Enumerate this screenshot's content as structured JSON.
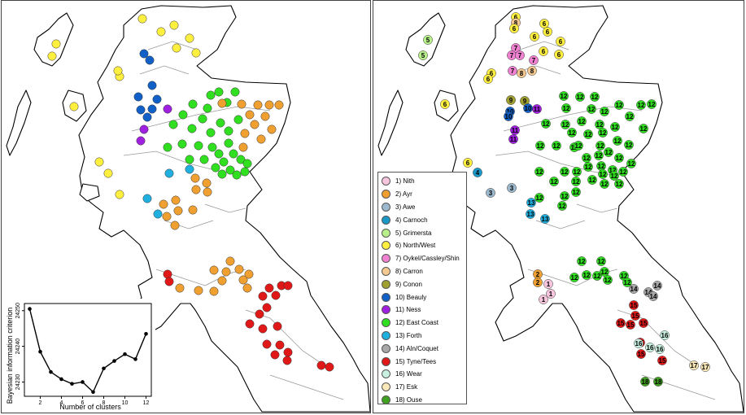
{
  "colors": {
    "1": "#f7c6de",
    "2": "#f0a030",
    "3": "#9cb8cc",
    "4": "#1a98c8",
    "5": "#b8f08a",
    "6": "#fff040",
    "7": "#f080d0",
    "8": "#f5c890",
    "9": "#a0a030",
    "10": "#1060c8",
    "11": "#a020e0",
    "12": "#30e020",
    "13": "#20b0e0",
    "14": "#a8a8a8",
    "15": "#e01818",
    "16": "#c8f0e0",
    "17": "#fae8b8",
    "18": "#40a020"
  },
  "legend": [
    {
      "id": "1",
      "label": "1) Nith"
    },
    {
      "id": "2",
      "label": "2) Ayr"
    },
    {
      "id": "3",
      "label": "3) Awe"
    },
    {
      "id": "4",
      "label": "4) Carnoch"
    },
    {
      "id": "5",
      "label": "5) Grimersta"
    },
    {
      "id": "6",
      "label": "6) North/West"
    },
    {
      "id": "7",
      "label": "7) Oykel/Cassley/Shin"
    },
    {
      "id": "8",
      "label": "8) Carron"
    },
    {
      "id": "9",
      "label": "9) Conon"
    },
    {
      "id": "10",
      "label": "10) Beauly"
    },
    {
      "id": "11",
      "label": "11) Ness"
    },
    {
      "id": "12",
      "label": "12) East Coast"
    },
    {
      "id": "13",
      "label": "13) Forth"
    },
    {
      "id": "14",
      "label": "14) Aln/Coquet"
    },
    {
      "id": "15",
      "label": "15) Tyne/Tees"
    },
    {
      "id": "16",
      "label": "16) Wear"
    },
    {
      "id": "17",
      "label": "17) Esk"
    },
    {
      "id": "18",
      "label": "18) Ouse"
    }
  ],
  "chart_data": {
    "type": "line",
    "xlabel": "Number of clusters",
    "ylabel": "Bayesian information criterion",
    "x": [
      1,
      2,
      3,
      4,
      5,
      6,
      7,
      8,
      9,
      10,
      11,
      12
    ],
    "y": [
      24250.5,
      24238.5,
      24232.8,
      24230.8,
      24229.5,
      24230.0,
      24227.2,
      24233.8,
      24235.9,
      24237.8,
      24236.4,
      24243.5
    ],
    "xticks": [
      2,
      4,
      6,
      8,
      10,
      12
    ],
    "yticks": [
      24230,
      24240,
      24250
    ],
    "xlim": [
      0.5,
      12.5
    ],
    "ylim": [
      24226.0,
      24252.0
    ]
  },
  "left_sites": [
    {
      "c": "6",
      "x": 68,
      "y": 53
    },
    {
      "c": "6",
      "x": 63,
      "y": 68
    },
    {
      "c": "6",
      "x": 90,
      "y": 130
    },
    {
      "c": "6",
      "x": 174,
      "y": 22
    },
    {
      "c": "6",
      "x": 197,
      "y": 38
    },
    {
      "c": "6",
      "x": 213,
      "y": 30
    },
    {
      "c": "6",
      "x": 232,
      "y": 46
    },
    {
      "c": "6",
      "x": 216,
      "y": 58
    },
    {
      "c": "6",
      "x": 240,
      "y": 64
    },
    {
      "c": "6",
      "x": 146,
      "y": 93
    },
    {
      "c": "6",
      "x": 144,
      "y": 86
    },
    {
      "c": "6",
      "x": 121,
      "y": 198
    },
    {
      "c": "6",
      "x": 132,
      "y": 212
    },
    {
      "c": "6",
      "x": 146,
      "y": 238
    },
    {
      "c": "10",
      "x": 176,
      "y": 65
    },
    {
      "c": "10",
      "x": 183,
      "y": 73
    },
    {
      "c": "10",
      "x": 186,
      "y": 104
    },
    {
      "c": "10",
      "x": 169,
      "y": 118
    },
    {
      "c": "10",
      "x": 172,
      "y": 134
    },
    {
      "c": "10",
      "x": 186,
      "y": 133
    },
    {
      "c": "10",
      "x": 192,
      "y": 121
    },
    {
      "c": "10",
      "x": 180,
      "y": 143
    },
    {
      "c": "11",
      "x": 205,
      "y": 133
    },
    {
      "c": "11",
      "x": 176,
      "y": 158
    },
    {
      "c": "11",
      "x": 172,
      "y": 172
    },
    {
      "c": "13",
      "x": 207,
      "y": 212
    },
    {
      "c": "13",
      "x": 232,
      "y": 207
    },
    {
      "c": "13",
      "x": 180,
      "y": 243
    },
    {
      "c": "13",
      "x": 193,
      "y": 262
    },
    {
      "c": "12",
      "x": 258,
      "y": 116
    },
    {
      "c": "12",
      "x": 268,
      "y": 112
    },
    {
      "c": "12",
      "x": 288,
      "y": 112
    },
    {
      "c": "12",
      "x": 236,
      "y": 127
    },
    {
      "c": "12",
      "x": 254,
      "y": 132
    },
    {
      "c": "12",
      "x": 278,
      "y": 125
    },
    {
      "c": "12",
      "x": 224,
      "y": 140
    },
    {
      "c": "12",
      "x": 248,
      "y": 145
    },
    {
      "c": "12",
      "x": 270,
      "y": 150
    },
    {
      "c": "12",
      "x": 212,
      "y": 152
    },
    {
      "c": "12",
      "x": 235,
      "y": 157
    },
    {
      "c": "12",
      "x": 258,
      "y": 162
    },
    {
      "c": "12",
      "x": 280,
      "y": 160
    },
    {
      "c": "12",
      "x": 292,
      "y": 146
    },
    {
      "c": "12",
      "x": 205,
      "y": 180
    },
    {
      "c": "12",
      "x": 223,
      "y": 176
    },
    {
      "c": "12",
      "x": 243,
      "y": 178
    },
    {
      "c": "12",
      "x": 260,
      "y": 180
    },
    {
      "c": "12",
      "x": 280,
      "y": 175
    },
    {
      "c": "12",
      "x": 232,
      "y": 195
    },
    {
      "c": "12",
      "x": 250,
      "y": 195
    },
    {
      "c": "12",
      "x": 268,
      "y": 188
    },
    {
      "c": "12",
      "x": 286,
      "y": 188
    },
    {
      "c": "12",
      "x": 274,
      "y": 198
    },
    {
      "c": "12",
      "x": 295,
      "y": 195
    },
    {
      "c": "12",
      "x": 264,
      "y": 205
    },
    {
      "c": "12",
      "x": 282,
      "y": 208
    },
    {
      "c": "12",
      "x": 300,
      "y": 210
    },
    {
      "c": "12",
      "x": 272,
      "y": 213
    },
    {
      "c": "12",
      "x": 290,
      "y": 214
    },
    {
      "c": "12",
      "x": 303,
      "y": 200
    },
    {
      "c": "2",
      "x": 272,
      "y": 126
    },
    {
      "c": "2",
      "x": 296,
      "y": 127
    },
    {
      "c": "2",
      "x": 316,
      "y": 128
    },
    {
      "c": "2",
      "x": 330,
      "y": 128
    },
    {
      "c": "2",
      "x": 342,
      "y": 128
    },
    {
      "c": "2",
      "x": 306,
      "y": 140
    },
    {
      "c": "2",
      "x": 325,
      "y": 142
    },
    {
      "c": "2",
      "x": 312,
      "y": 152
    },
    {
      "c": "2",
      "x": 333,
      "y": 158
    },
    {
      "c": "2",
      "x": 300,
      "y": 163
    },
    {
      "c": "2",
      "x": 320,
      "y": 170
    },
    {
      "c": "2",
      "x": 298,
      "y": 180
    },
    {
      "c": "2",
      "x": 239,
      "y": 218
    },
    {
      "c": "2",
      "x": 253,
      "y": 224
    },
    {
      "c": "2",
      "x": 240,
      "y": 232
    },
    {
      "c": "2",
      "x": 254,
      "y": 235
    },
    {
      "c": "2",
      "x": 215,
      "y": 245
    },
    {
      "c": "2",
      "x": 200,
      "y": 250
    },
    {
      "c": "2",
      "x": 204,
      "y": 265
    },
    {
      "c": "2",
      "x": 218,
      "y": 258
    },
    {
      "c": "2",
      "x": 236,
      "y": 257
    },
    {
      "c": "2",
      "x": 214,
      "y": 276
    },
    {
      "c": "2",
      "x": 282,
      "y": 320
    },
    {
      "c": "2",
      "x": 277,
      "y": 333
    },
    {
      "c": "2",
      "x": 262,
      "y": 331
    },
    {
      "c": "2",
      "x": 293,
      "y": 330
    },
    {
      "c": "2",
      "x": 272,
      "y": 344
    },
    {
      "c": "2",
      "x": 262,
      "y": 357
    },
    {
      "c": "2",
      "x": 243,
      "y": 356
    },
    {
      "c": "2",
      "x": 220,
      "y": 353
    },
    {
      "c": "2",
      "x": 305,
      "y": 336
    },
    {
      "c": "2",
      "x": 303,
      "y": 353
    },
    {
      "c": "2",
      "x": 298,
      "y": 343
    },
    {
      "c": "15",
      "x": 205,
      "y": 336
    },
    {
      "c": "15",
      "x": 207,
      "y": 345
    },
    {
      "c": "15",
      "x": 345,
      "y": 350
    },
    {
      "c": "15",
      "x": 353,
      "y": 350
    },
    {
      "c": "15",
      "x": 330,
      "y": 353
    },
    {
      "c": "15",
      "x": 338,
      "y": 362
    },
    {
      "c": "15",
      "x": 322,
      "y": 363
    },
    {
      "c": "15",
      "x": 327,
      "y": 377
    },
    {
      "c": "15",
      "x": 318,
      "y": 385
    },
    {
      "c": "15",
      "x": 306,
      "y": 397
    },
    {
      "c": "15",
      "x": 322,
      "y": 403
    },
    {
      "c": "15",
      "x": 340,
      "y": 400
    },
    {
      "c": "15",
      "x": 327,
      "y": 422
    },
    {
      "c": "15",
      "x": 343,
      "y": 423
    },
    {
      "c": "15",
      "x": 353,
      "y": 432
    },
    {
      "c": "15",
      "x": 337,
      "y": 435
    },
    {
      "c": "15",
      "x": 352,
      "y": 442
    },
    {
      "c": "15",
      "x": 394,
      "y": 448
    },
    {
      "c": "15",
      "x": 404,
      "y": 450
    }
  ],
  "right_sites": [
    {
      "c": "6",
      "l": "6",
      "x": 633,
      "y": 20
    },
    {
      "c": "8",
      "l": "8",
      "x": 633,
      "y": 27
    },
    {
      "c": "6",
      "l": "6",
      "x": 631,
      "y": 34
    },
    {
      "c": "6",
      "l": "6",
      "x": 668,
      "y": 28
    },
    {
      "c": "6",
      "l": "6",
      "x": 656,
      "y": 44
    },
    {
      "c": "6",
      "l": "6",
      "x": 672,
      "y": 38
    },
    {
      "c": "6",
      "l": "6",
      "x": 688,
      "y": 50
    },
    {
      "c": "6",
      "l": "6",
      "x": 667,
      "y": 62
    },
    {
      "c": "6",
      "l": "6",
      "x": 686,
      "y": 66
    },
    {
      "c": "6",
      "l": "6",
      "x": 603,
      "y": 89
    },
    {
      "c": "6",
      "l": "6",
      "x": 599,
      "y": 96
    },
    {
      "c": "6",
      "l": "6",
      "x": 546,
      "y": 127
    },
    {
      "c": "6",
      "l": "6",
      "x": 574,
      "y": 199
    },
    {
      "c": "5",
      "l": "5",
      "x": 525,
      "y": 48
    },
    {
      "c": "5",
      "l": "5",
      "x": 519,
      "y": 67
    },
    {
      "c": "7",
      "l": "7",
      "x": 633,
      "y": 58
    },
    {
      "c": "7",
      "l": "7",
      "x": 628,
      "y": 67
    },
    {
      "c": "7",
      "l": "7",
      "x": 638,
      "y": 67
    },
    {
      "c": "7",
      "l": "7",
      "x": 655,
      "y": 73
    },
    {
      "c": "7",
      "l": "7",
      "x": 629,
      "y": 86
    },
    {
      "c": "8",
      "l": "8",
      "x": 653,
      "y": 86
    },
    {
      "c": "8",
      "l": "8",
      "x": 640,
      "y": 89
    },
    {
      "c": "9",
      "l": "9",
      "x": 627,
      "y": 122
    },
    {
      "c": "9",
      "l": "9",
      "x": 644,
      "y": 123
    },
    {
      "c": "10",
      "l": "10",
      "x": 626,
      "y": 136
    },
    {
      "c": "10",
      "l": "10",
      "x": 624,
      "y": 142
    },
    {
      "c": "10",
      "l": "10",
      "x": 648,
      "y": 132
    },
    {
      "c": "11",
      "l": "11",
      "x": 659,
      "y": 133
    },
    {
      "c": "11",
      "l": "11",
      "x": 632,
      "y": 159
    },
    {
      "c": "11",
      "l": "11",
      "x": 630,
      "y": 170
    },
    {
      "c": "4",
      "l": "4",
      "x": 586,
      "y": 211
    },
    {
      "c": "3",
      "l": "3",
      "x": 602,
      "y": 236
    },
    {
      "c": "3",
      "l": "3",
      "x": 628,
      "y": 230
    },
    {
      "c": "13",
      "l": "13",
      "x": 652,
      "y": 248
    },
    {
      "c": "13",
      "l": "13",
      "x": 651,
      "y": 262
    },
    {
      "c": "13",
      "l": "13",
      "x": 669,
      "y": 268
    },
    {
      "c": "12",
      "l": "12",
      "x": 692,
      "y": 117
    },
    {
      "c": "12",
      "l": "12",
      "x": 712,
      "y": 118
    },
    {
      "c": "12",
      "l": "12",
      "x": 730,
      "y": 118
    },
    {
      "c": "12",
      "l": "12",
      "x": 760,
      "y": 128
    },
    {
      "c": "12",
      "l": "12",
      "x": 787,
      "y": 128
    },
    {
      "c": "12",
      "l": "12",
      "x": 800,
      "y": 127
    },
    {
      "c": "12",
      "l": "12",
      "x": 695,
      "y": 132
    },
    {
      "c": "12",
      "l": "12",
      "x": 726,
      "y": 133
    },
    {
      "c": "12",
      "l": "12",
      "x": 742,
      "y": 136
    },
    {
      "c": "12",
      "l": "12",
      "x": 773,
      "y": 142
    },
    {
      "c": "12",
      "l": "12",
      "x": 670,
      "y": 151
    },
    {
      "c": "12",
      "l": "12",
      "x": 694,
      "y": 152
    },
    {
      "c": "12",
      "l": "12",
      "x": 714,
      "y": 148
    },
    {
      "c": "12",
      "l": "12",
      "x": 736,
      "y": 152
    },
    {
      "c": "12",
      "l": "12",
      "x": 755,
      "y": 155
    },
    {
      "c": "12",
      "l": "12",
      "x": 790,
      "y": 157
    },
    {
      "c": "12",
      "l": "12",
      "x": 702,
      "y": 162
    },
    {
      "c": "12",
      "l": "12",
      "x": 722,
      "y": 164
    },
    {
      "c": "12",
      "l": "12",
      "x": 740,
      "y": 162
    },
    {
      "c": "12",
      "l": "12",
      "x": 663,
      "y": 178
    },
    {
      "c": "12",
      "l": "12",
      "x": 683,
      "y": 178
    },
    {
      "c": "12",
      "l": "12",
      "x": 705,
      "y": 180
    },
    {
      "c": "12",
      "l": "12",
      "x": 710,
      "y": 178
    },
    {
      "c": "12",
      "l": "12",
      "x": 737,
      "y": 178
    },
    {
      "c": "12",
      "l": "12",
      "x": 758,
      "y": 172
    },
    {
      "c": "12",
      "l": "12",
      "x": 772,
      "y": 177
    },
    {
      "c": "12",
      "l": "12",
      "x": 720,
      "y": 193
    },
    {
      "c": "12",
      "l": "12",
      "x": 735,
      "y": 190
    },
    {
      "c": "12",
      "l": "12",
      "x": 747,
      "y": 186
    },
    {
      "c": "12",
      "l": "12",
      "x": 760,
      "y": 193
    },
    {
      "c": "12",
      "l": "12",
      "x": 775,
      "y": 200
    },
    {
      "c": "12",
      "l": "12",
      "x": 722,
      "y": 204
    },
    {
      "c": "12",
      "l": "12",
      "x": 738,
      "y": 203
    },
    {
      "c": "12",
      "l": "12",
      "x": 752,
      "y": 208
    },
    {
      "c": "12",
      "l": "12",
      "x": 765,
      "y": 210
    },
    {
      "c": "12",
      "l": "12",
      "x": 740,
      "y": 213
    },
    {
      "c": "12",
      "l": "12",
      "x": 754,
      "y": 215
    },
    {
      "c": "12",
      "l": "12",
      "x": 708,
      "y": 210
    },
    {
      "c": "12",
      "l": "12",
      "x": 693,
      "y": 210
    },
    {
      "c": "12",
      "l": "12",
      "x": 707,
      "y": 222
    },
    {
      "c": "12",
      "l": "12",
      "x": 727,
      "y": 220
    },
    {
      "c": "12",
      "l": "12",
      "x": 742,
      "y": 225
    },
    {
      "c": "12",
      "l": "12",
      "x": 760,
      "y": 225
    },
    {
      "c": "12",
      "l": "12",
      "x": 707,
      "y": 235
    },
    {
      "c": "12",
      "l": "12",
      "x": 662,
      "y": 210
    },
    {
      "c": "12",
      "l": "12",
      "x": 680,
      "y": 222
    },
    {
      "c": "12",
      "l": "12",
      "x": 693,
      "y": 240
    },
    {
      "c": "12",
      "l": "12",
      "x": 662,
      "y": 242
    },
    {
      "c": "12",
      "l": "12",
      "x": 690,
      "y": 252
    },
    {
      "c": "12",
      "l": "12",
      "x": 714,
      "y": 320
    },
    {
      "c": "12",
      "l": "12",
      "x": 738,
      "y": 320
    },
    {
      "c": "12",
      "l": "12",
      "x": 742,
      "y": 333
    },
    {
      "c": "12",
      "l": "12",
      "x": 720,
      "y": 337
    },
    {
      "c": "12",
      "l": "12",
      "x": 733,
      "y": 338
    },
    {
      "c": "12",
      "l": "12",
      "x": 746,
      "y": 343
    },
    {
      "c": "12",
      "l": "12",
      "x": 705,
      "y": 340
    },
    {
      "c": "12",
      "l": "12",
      "x": 766,
      "y": 338
    },
    {
      "c": "12",
      "l": "12",
      "x": 770,
      "y": 346
    },
    {
      "c": "2",
      "l": "2",
      "x": 660,
      "y": 336
    },
    {
      "c": "2",
      "l": "2",
      "x": 660,
      "y": 346
    },
    {
      "c": "1",
      "l": "1",
      "x": 673,
      "y": 348
    },
    {
      "c": "1",
      "l": "1",
      "x": 676,
      "y": 360
    },
    {
      "c": "1",
      "l": "1",
      "x": 667,
      "y": 367
    },
    {
      "c": "14",
      "l": "14",
      "x": 778,
      "y": 354
    },
    {
      "c": "14",
      "l": "14",
      "x": 796,
      "y": 358
    },
    {
      "c": "14",
      "l": "14",
      "x": 807,
      "y": 350
    },
    {
      "c": "14",
      "l": "14",
      "x": 802,
      "y": 363
    },
    {
      "c": "15",
      "l": "15",
      "x": 778,
      "y": 374
    },
    {
      "c": "15",
      "l": "15",
      "x": 780,
      "y": 387
    },
    {
      "c": "15",
      "l": "15",
      "x": 762,
      "y": 396
    },
    {
      "c": "15",
      "l": "15",
      "x": 774,
      "y": 398
    },
    {
      "c": "15",
      "l": "15",
      "x": 790,
      "y": 396
    },
    {
      "c": "15",
      "l": "15",
      "x": 786,
      "y": 420
    },
    {
      "c": "15",
      "l": "15",
      "x": 787,
      "y": 434
    },
    {
      "c": "15",
      "l": "15",
      "x": 813,
      "y": 442
    },
    {
      "c": "16",
      "l": "16",
      "x": 816,
      "y": 411
    },
    {
      "c": "16",
      "l": "16",
      "x": 784,
      "y": 421
    },
    {
      "c": "16",
      "l": "16",
      "x": 798,
      "y": 426
    },
    {
      "c": "16",
      "l": "16",
      "x": 810,
      "y": 428
    },
    {
      "c": "17",
      "l": "17",
      "x": 852,
      "y": 448
    },
    {
      "c": "17",
      "l": "17",
      "x": 866,
      "y": 450
    },
    {
      "c": "18",
      "l": "18",
      "x": 792,
      "y": 468
    },
    {
      "c": "18",
      "l": "18",
      "x": 808,
      "y": 468
    }
  ]
}
